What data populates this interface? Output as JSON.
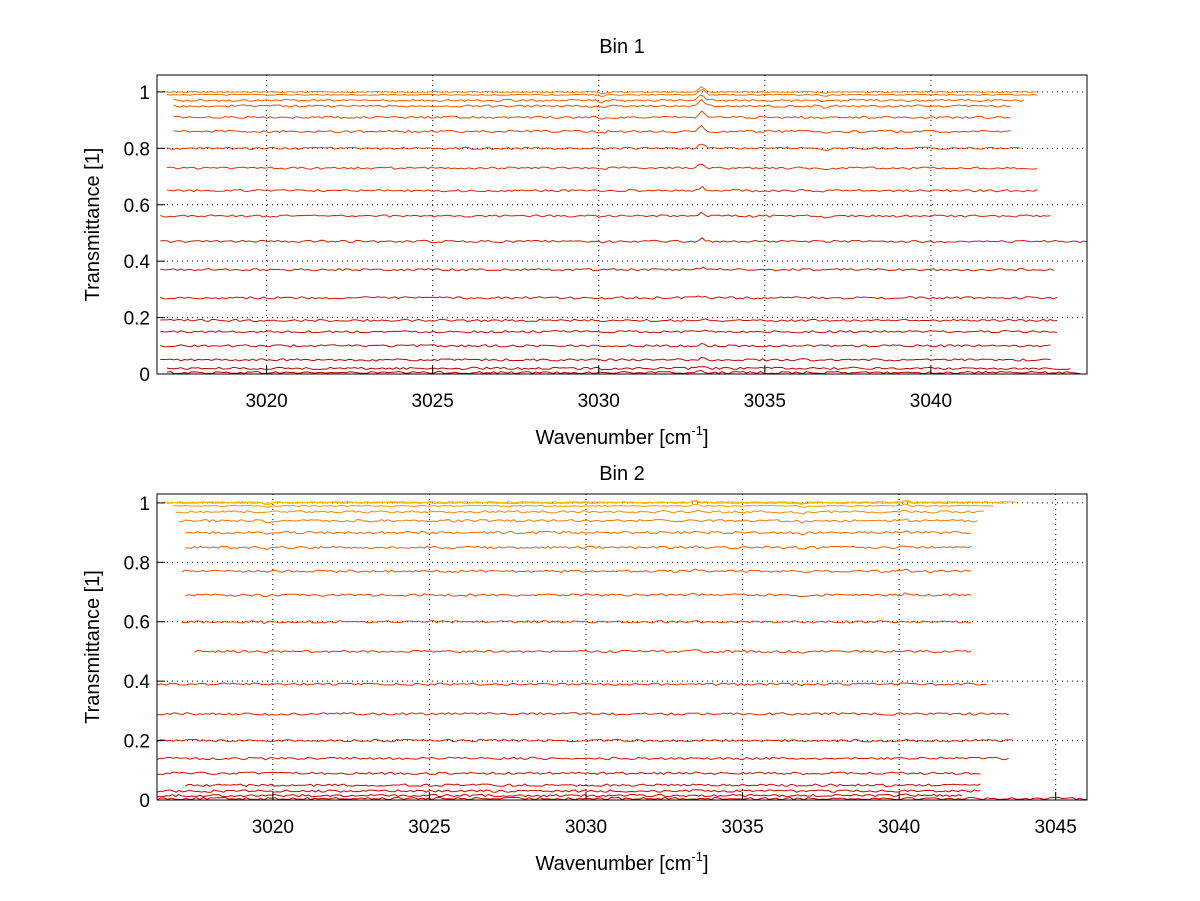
{
  "chart_data": [
    {
      "type": "line",
      "title": "Bin 1",
      "xlabel": "Wavenumber [cm",
      "xlabel_sup": "-1",
      "xlabel_tail": "]",
      "ylabel": "Transmittance [1]",
      "xlim": [
        3016.7,
        3044.7
      ],
      "ylim": [
        0,
        1.06
      ],
      "xticks": [
        3020,
        3025,
        3030,
        3035,
        3040
      ],
      "yticks": [
        0,
        0.2,
        0.4,
        0.6,
        0.8,
        1
      ],
      "ytick_labels": [
        "0",
        "0.2",
        "0.4",
        "0.6",
        "0.8",
        "1"
      ],
      "grid": true,
      "notable_features": [
        {
          "x": 3033.1,
          "description": "sharp peak"
        },
        {
          "x": 3030.1,
          "description": "small dip"
        },
        {
          "x": 3036.8,
          "description": "small dip"
        }
      ],
      "series": [
        {
          "level": 0.005,
          "x_start": 3017.0,
          "x_end": 3044.5,
          "color": "#b40000"
        },
        {
          "level": 0.02,
          "x_start": 3017.0,
          "x_end": 3044.2,
          "color": "#b80000"
        },
        {
          "level": 0.05,
          "x_start": 3016.8,
          "x_end": 3043.6,
          "color": "#bc0500"
        },
        {
          "level": 0.1,
          "x_start": 3016.8,
          "x_end": 3043.6,
          "color": "#c00800"
        },
        {
          "level": 0.15,
          "x_start": 3016.8,
          "x_end": 3043.8,
          "color": "#c40c00"
        },
        {
          "level": 0.19,
          "x_start": 3016.8,
          "x_end": 3043.8,
          "color": "#c81000"
        },
        {
          "level": 0.27,
          "x_start": 3016.8,
          "x_end": 3043.8,
          "color": "#cc1400"
        },
        {
          "level": 0.37,
          "x_start": 3016.8,
          "x_end": 3043.7,
          "color": "#d01800"
        },
        {
          "level": 0.47,
          "x_start": 3016.8,
          "x_end": 3044.7,
          "color": "#d41c00"
        },
        {
          "level": 0.56,
          "x_start": 3016.8,
          "x_end": 3043.6,
          "color": "#d82000"
        },
        {
          "level": 0.65,
          "x_start": 3017.0,
          "x_end": 3043.2,
          "color": "#dc2800"
        },
        {
          "level": 0.73,
          "x_start": 3017.0,
          "x_end": 3043.2,
          "color": "#e03000"
        },
        {
          "level": 0.8,
          "x_start": 3017.0,
          "x_end": 3042.7,
          "color": "#e43800"
        },
        {
          "level": 0.86,
          "x_start": 3017.2,
          "x_end": 3042.4,
          "color": "#e84000"
        },
        {
          "level": 0.91,
          "x_start": 3017.2,
          "x_end": 3042.4,
          "color": "#ec4800"
        },
        {
          "level": 0.95,
          "x_start": 3017.2,
          "x_end": 3042.4,
          "color": "#ef5400"
        },
        {
          "level": 0.97,
          "x_start": 3017.2,
          "x_end": 3042.8,
          "color": "#f06000"
        },
        {
          "level": 0.99,
          "x_start": 3017.0,
          "x_end": 3043.2,
          "color": "#f26e00"
        },
        {
          "level": 1.0,
          "x_start": 3016.9,
          "x_end": 3043.2,
          "color": "#f47c00"
        }
      ]
    },
    {
      "type": "line",
      "title": "Bin 2",
      "xlabel": "Wavenumber [cm",
      "xlabel_sup": "-1",
      "xlabel_tail": "]",
      "ylabel": "Transmittance [1]",
      "xlim": [
        3016.3,
        3046.0
      ],
      "ylim": [
        0,
        1.03
      ],
      "xticks": [
        3020,
        3025,
        3030,
        3035,
        3040,
        3045
      ],
      "yticks": [
        0,
        0.2,
        0.4,
        0.6,
        0.8,
        1
      ],
      "ytick_labels": [
        "0",
        "0.2",
        "0.4",
        "0.6",
        "0.8",
        "1"
      ],
      "grid": true,
      "notable_features": [
        {
          "x": 3019.8,
          "description": "small dip"
        },
        {
          "x": 3033.5,
          "description": "small peak"
        },
        {
          "x": 3036.9,
          "description": "small dip"
        },
        {
          "x": 3040.2,
          "description": "small peak"
        }
      ],
      "series": [
        {
          "level": 0.005,
          "x_start": 3016.3,
          "x_end": 3046.0,
          "color": "#c00000"
        },
        {
          "level": 0.015,
          "x_start": 3016.3,
          "x_end": 3042.0,
          "color": "#c40000"
        },
        {
          "level": 0.03,
          "x_start": 3016.3,
          "x_end": 3042.6,
          "color": "#c80400"
        },
        {
          "level": 0.05,
          "x_start": 3017.2,
          "x_end": 3042.6,
          "color": "#cc0800"
        },
        {
          "level": 0.09,
          "x_start": 3016.3,
          "x_end": 3042.6,
          "color": "#d00c00"
        },
        {
          "level": 0.14,
          "x_start": 3016.3,
          "x_end": 3043.5,
          "color": "#d41400"
        },
        {
          "level": 0.2,
          "x_start": 3016.3,
          "x_end": 3043.6,
          "color": "#d81c00"
        },
        {
          "level": 0.29,
          "x_start": 3016.3,
          "x_end": 3043.5,
          "color": "#dc2400"
        },
        {
          "level": 0.39,
          "x_start": 3016.3,
          "x_end": 3042.8,
          "color": "#e02c00"
        },
        {
          "level": 0.5,
          "x_start": 3017.5,
          "x_end": 3042.3,
          "color": "#e43400"
        },
        {
          "level": 0.6,
          "x_start": 3017.1,
          "x_end": 3042.3,
          "color": "#e83c00"
        },
        {
          "level": 0.69,
          "x_start": 3017.2,
          "x_end": 3042.3,
          "color": "#ec4600"
        },
        {
          "level": 0.77,
          "x_start": 3017.1,
          "x_end": 3042.3,
          "color": "#ef5200"
        },
        {
          "level": 0.85,
          "x_start": 3017.2,
          "x_end": 3042.3,
          "color": "#f05e00"
        },
        {
          "level": 0.9,
          "x_start": 3017.2,
          "x_end": 3042.3,
          "color": "#f26a00"
        },
        {
          "level": 0.94,
          "x_start": 3017.0,
          "x_end": 3042.5,
          "color": "#f47800"
        },
        {
          "level": 0.97,
          "x_start": 3016.9,
          "x_end": 3042.7,
          "color": "#f68800"
        },
        {
          "level": 0.99,
          "x_start": 3016.8,
          "x_end": 3043.0,
          "color": "#f89a00"
        },
        {
          "level": 1.0,
          "x_start": 3016.6,
          "x_end": 3043.5,
          "color": "#f8ae00"
        },
        {
          "level": 1.003,
          "x_start": 3016.5,
          "x_end": 3043.8,
          "color": "#f5c000"
        }
      ]
    }
  ]
}
